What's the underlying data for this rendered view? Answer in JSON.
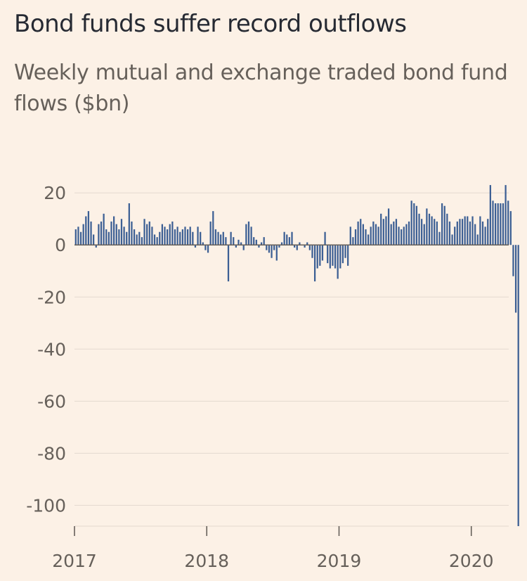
{
  "title": "Bond funds suffer record outflows",
  "subtitle": "Weekly mutual and exchange traded bond fund flows ($bn)",
  "chart_data": {
    "type": "bar",
    "ylim": [
      -108,
      26
    ],
    "y_ticks": [
      {
        "value": 20,
        "label": "20"
      },
      {
        "value": 0,
        "label": "0"
      },
      {
        "value": -20,
        "label": "-20"
      },
      {
        "value": -40,
        "label": "-40"
      },
      {
        "value": -60,
        "label": "-60"
      },
      {
        "value": -80,
        "label": "-80"
      },
      {
        "value": -100,
        "label": "-100"
      }
    ],
    "x_ticks": [
      {
        "week": 0,
        "label": "2017"
      },
      {
        "week": 52,
        "label": "2018"
      },
      {
        "week": 104,
        "label": "2019"
      },
      {
        "week": 156,
        "label": "2020"
      }
    ],
    "grid": true,
    "colors": {
      "bar": "#3c5f94",
      "grid": "#e3d9cf",
      "axis": "#66605a"
    },
    "values": [
      6,
      7,
      5,
      8,
      11,
      13,
      9,
      4,
      -1,
      8,
      9,
      12,
      6,
      5,
      9,
      11,
      8,
      6,
      10,
      7,
      5,
      16,
      9,
      6,
      4,
      5,
      3,
      10,
      8,
      9,
      7,
      4,
      3,
      5,
      8,
      7,
      6,
      8,
      9,
      6,
      7,
      5,
      6,
      7,
      6,
      7,
      5,
      -1,
      7,
      5,
      1,
      -2,
      -3,
      9,
      13,
      6,
      5,
      4,
      5,
      3,
      -14,
      5,
      3,
      -1,
      2,
      1,
      -2,
      8,
      9,
      7,
      3,
      2,
      -1,
      1,
      3,
      -2,
      -3,
      -5,
      -2,
      -6,
      -1,
      1,
      5,
      4,
      3,
      5,
      -1,
      -2,
      1,
      0,
      -1,
      1,
      -2,
      -5,
      -14,
      -9,
      -8,
      -6,
      5,
      -7,
      -9,
      -8,
      -9,
      -13,
      -9,
      -7,
      -5,
      -8,
      7,
      3,
      6,
      9,
      10,
      8,
      6,
      4,
      7,
      9,
      8,
      7,
      12,
      10,
      11,
      14,
      8,
      9,
      10,
      7,
      6,
      7,
      8,
      9,
      17,
      16,
      15,
      12,
      10,
      8,
      14,
      12,
      11,
      10,
      9,
      5,
      16,
      15,
      12,
      9,
      4,
      7,
      9,
      10,
      10,
      11,
      11,
      9,
      11,
      8,
      4,
      11,
      9,
      7,
      10,
      23,
      17,
      16,
      16,
      16,
      16,
      23,
      17,
      13,
      -12,
      -26,
      -109
    ]
  }
}
